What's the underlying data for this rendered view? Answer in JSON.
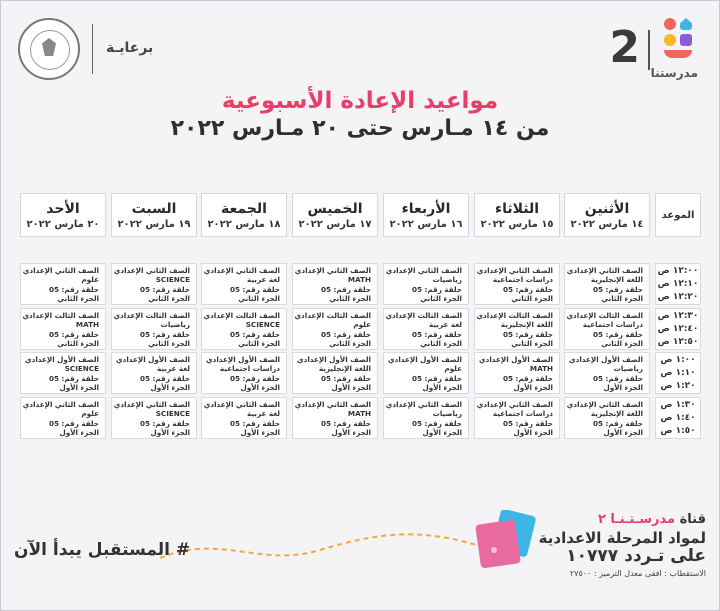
{
  "brand": {
    "number": "2",
    "name": "مدرستنا"
  },
  "sponsor": {
    "label": "برعايـة"
  },
  "title": "مواعيد الإعادة الأسبوعية",
  "subtitle": "من ١٤ مـارس حتى ٢٠ مـارس ٢٠٢٢",
  "time_header": "الموعد",
  "days": [
    {
      "day": "الأثنين",
      "date": "١٤ مارس ٢٠٢٢"
    },
    {
      "day": "الثلاثاء",
      "date": "١٥ مارس ٢٠٢٢"
    },
    {
      "day": "الأربعاء",
      "date": "١٦ مارس ٢٠٢٢"
    },
    {
      "day": "الخميس",
      "date": "١٧ مارس ٢٠٢٢"
    },
    {
      "day": "الجمعة",
      "date": "١٨ مارس ٢٠٢٢"
    },
    {
      "day": "السبت",
      "date": "١٩ مارس ٢٠٢٢"
    },
    {
      "day": "الأحد",
      "date": "٢٠ مارس ٢٠٢٢"
    }
  ],
  "time_blocks": [
    [
      "١٢:٠٠ ص",
      "١٢:١٠ ص",
      "١٢:٢٠ ص"
    ],
    [
      "١٢:٣٠ ص",
      "١٢:٤٠ ص",
      "١٢:٥٠ ص"
    ],
    [
      "١:٠٠ ص",
      "١:١٠ ص",
      "١:٢٠ ص"
    ],
    [
      "١:٣٠ ص",
      "١:٤٠ ص",
      "١:٥٠ ص"
    ]
  ],
  "rows": [
    [
      [
        "الصف الثاني الإعدادي",
        "اللغة الإنجليزية",
        "حلقة رقم: 05",
        "الجزء الثاني"
      ],
      [
        "الصف الثاني الإعدادي",
        "دراسات اجتماعية",
        "حلقة رقم: 05",
        "الجزء الثاني"
      ],
      [
        "الصف الثاني الإعدادي",
        "رياضيات",
        "حلقة رقم: 05",
        "الجزء الثاني"
      ],
      [
        "الصف الثاني الإعدادي",
        "MATH",
        "حلقة رقم: 05",
        "الجزء الثاني"
      ],
      [
        "الصف الثاني الإعدادي",
        "لغة عربية",
        "حلقة رقم: 05",
        "الجزء الثاني"
      ],
      [
        "الصف الثاني الإعدادي",
        "SCIENCE",
        "حلقة رقم: 05",
        "الجزء الثاني"
      ],
      [
        "الصف الثاني الإعدادي",
        "علوم",
        "حلقة رقم: 05",
        "الجزء الثاني"
      ]
    ],
    [
      [
        "الصف الثالث الإعدادي",
        "دراسات اجتماعية",
        "حلقة رقم: 05",
        "الجزء الثاني"
      ],
      [
        "الصف الثالث الإعدادي",
        "اللغة الإنجليزية",
        "حلقة رقم: 05",
        "الجزء الثاني"
      ],
      [
        "الصف الثالث الإعدادي",
        "لغة عربية",
        "حلقة رقم: 05",
        "الجزء الثاني"
      ],
      [
        "الصف الثالث الإعدادي",
        "علوم",
        "حلقة رقم: 05",
        "الجزء الثاني"
      ],
      [
        "الصف الثالث الإعدادي",
        "SCIENCE",
        "حلقة رقم: 05",
        "الجزء الثاني"
      ],
      [
        "الصف الثالث الإعدادي",
        "رياضيات",
        "حلقة رقم: 05",
        "الجزء الثاني"
      ],
      [
        "الصف الثالث الإعدادي",
        "MATH",
        "حلقة رقم: 05",
        "الجزء الثاني"
      ]
    ],
    [
      [
        "الصف الأول الإعدادي",
        "رياضيات",
        "حلقة رقم: 05",
        "الجزء الأول"
      ],
      [
        "الصف الأول الإعدادي",
        "MATH",
        "حلقة رقم: 05",
        "الجزء الأول"
      ],
      [
        "الصف الأول الإعدادي",
        "علوم",
        "حلقة رقم: 05",
        "الجزء الأول"
      ],
      [
        "الصف الأول الإعدادي",
        "اللغة الإنجليزية",
        "حلقة رقم: 05",
        "الجزء الأول"
      ],
      [
        "الصف الأول الإعدادي",
        "دراسات اجتماعية",
        "حلقة رقم: 05",
        "الجزء الأول"
      ],
      [
        "الصف الأول الإعدادي",
        "لغة عربية",
        "حلقة رقم: 05",
        "الجزء الأول"
      ],
      [
        "الصف الأول الإعدادي",
        "SCIENCE",
        "حلقة رقم: 05",
        "الجزء الأول"
      ]
    ],
    [
      [
        "الصف الثاني الإعدادي",
        "اللغة الإنجليزية",
        "حلقة رقم: 05",
        "الجزء الأول"
      ],
      [
        "الصف الثاني الإعدادي",
        "دراسات اجتماعية",
        "حلقة رقم: 05",
        "الجزء الأول"
      ],
      [
        "الصف الثاني الإعدادي",
        "رياضيات",
        "حلقة رقم: 05",
        "الجزء الأول"
      ],
      [
        "الصف الثاني الإعدادي",
        "MATH",
        "حلقة رقم: 05",
        "الجزء الأول"
      ],
      [
        "الصف الثاني الإعدادي",
        "لغة عربية",
        "حلقة رقم: 05",
        "الجزء الأول"
      ],
      [
        "الصف الثاني الإعدادي",
        "SCIENCE",
        "حلقة رقم: 05",
        "الجزء الأول"
      ],
      [
        "الصف الثاني الإعدادي",
        "علوم",
        "حلقة رقم: 05",
        "الجزء الأول"
      ]
    ]
  ],
  "footer": {
    "slogan": "# المستقبل يبدأ الآن",
    "channel_prefix": "قناة",
    "channel_name": "مدرسـتـنـا ٢",
    "line2": "لمواد المرحلة الاعدادية",
    "line3": "على تـردد ١٠٧٧٧",
    "line4": "الاستقطاب : افقى معدل الترميز : ٢٧٥٠٠"
  },
  "colors": {
    "title": "#e53f6a",
    "accent": "#e53f6a"
  }
}
